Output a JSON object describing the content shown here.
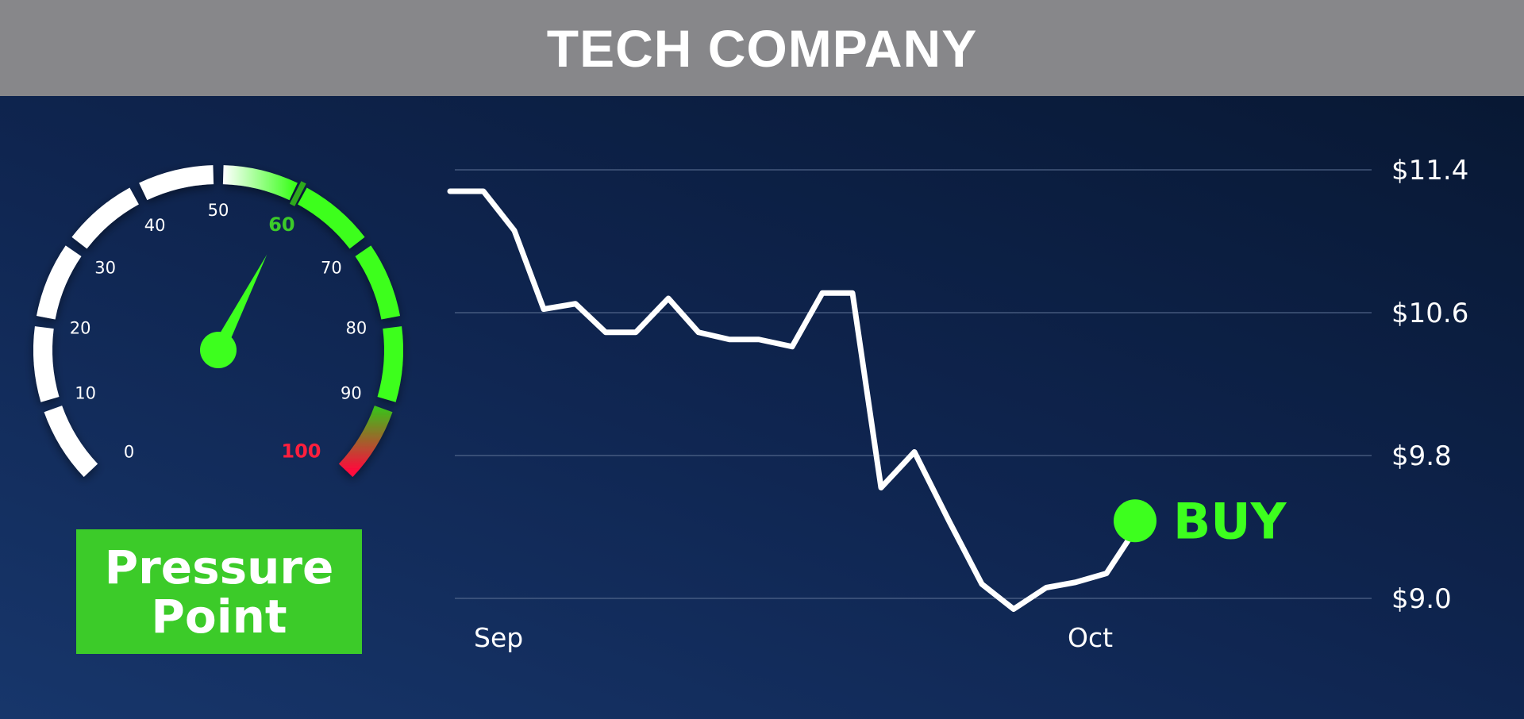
{
  "header": {
    "title": "TECH COMPANY"
  },
  "gauge": {
    "ticks": [
      "0",
      "10",
      "20",
      "30",
      "40",
      "50",
      "60",
      "70",
      "80",
      "90",
      "100"
    ],
    "value": 60,
    "max": 100,
    "highlight_labels": {
      "60": "#3ccb29",
      "100": "#ff1f3d"
    },
    "colors": {
      "track": "#ffffff",
      "green": "#3dff1e",
      "red": "#ff0a3c",
      "needle": "#3dff1e"
    }
  },
  "badge": {
    "line1": "Pressure",
    "line2": "Point"
  },
  "chart_data": {
    "type": "line",
    "title": "",
    "xlabel": "",
    "ylabel": "",
    "y_ticks": [
      "$11.4",
      "$10.6",
      "$9.8",
      "$9.0"
    ],
    "y_tick_values": [
      11.4,
      10.6,
      9.8,
      9.0
    ],
    "ylim": [
      9.0,
      11.4
    ],
    "x_ticks": [
      "Sep",
      "Oct"
    ],
    "grid": true,
    "series": [
      {
        "values": [
          11.28,
          11.28,
          11.06,
          10.62,
          10.65,
          10.49,
          10.49,
          10.68,
          10.49,
          10.45,
          10.45,
          10.41,
          10.71,
          10.71,
          9.62,
          9.82,
          9.43,
          9.08,
          8.94,
          9.06,
          9.09,
          9.14,
          9.35
        ],
        "color": "#ffffff"
      }
    ],
    "annotation": {
      "text": "BUY",
      "point_index": 22,
      "color": "#3dff1e"
    }
  }
}
